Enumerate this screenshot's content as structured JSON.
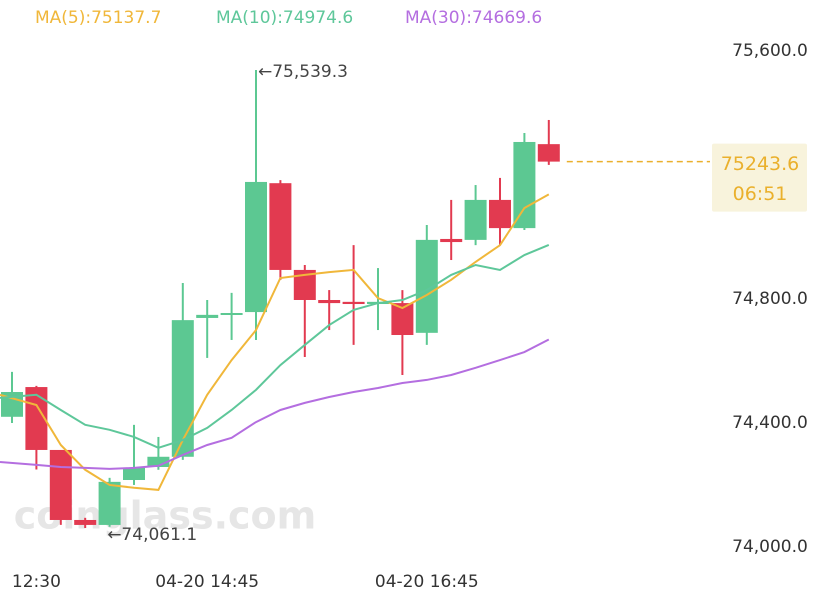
{
  "chart_data": {
    "type": "candlestick",
    "watermark": "coinglass.com",
    "categories": [
      null,
      "12:30",
      null,
      null,
      null,
      null,
      null,
      null,
      "04-20 14:45",
      null,
      null,
      null,
      null,
      null,
      null,
      null,
      null,
      "04-20 16:45",
      null,
      null,
      null,
      null,
      null
    ],
    "candles": [
      {
        "open": 74420,
        "high": 74565,
        "low": 74400,
        "close": 74500
      },
      {
        "open": 74516,
        "high": 74520,
        "low": 74250,
        "close": 74313
      },
      {
        "open": 74313,
        "high": 74313,
        "low": 74071,
        "close": 74087
      },
      {
        "open": 74087,
        "high": 74094,
        "low": 74061.1,
        "close": 74071
      },
      {
        "open": 74071,
        "high": 74223,
        "low": 74065,
        "close": 74210
      },
      {
        "open": 74216,
        "high": 74394,
        "low": 74200,
        "close": 74255
      },
      {
        "open": 74258,
        "high": 74355,
        "low": 74249,
        "close": 74291
      },
      {
        "open": 74291,
        "high": 74852,
        "low": 74281,
        "close": 74732
      },
      {
        "open": 74739,
        "high": 74797,
        "low": 74610,
        "close": 74749
      },
      {
        "open": 74749,
        "high": 74820,
        "low": 74668,
        "close": 74755
      },
      {
        "open": 74758,
        "high": 75539.3,
        "low": 74668,
        "close": 75178
      },
      {
        "open": 75174,
        "high": 75184,
        "low": 74862,
        "close": 74894
      },
      {
        "open": 74894,
        "high": 74910,
        "low": 74613,
        "close": 74797
      },
      {
        "open": 74797,
        "high": 74829,
        "low": 74700,
        "close": 74787
      },
      {
        "open": 74791,
        "high": 74974,
        "low": 74652,
        "close": 74784
      },
      {
        "open": 74784,
        "high": 74900,
        "low": 74700,
        "close": 74791
      },
      {
        "open": 74787,
        "high": 74829,
        "low": 74555,
        "close": 74684
      },
      {
        "open": 74691,
        "high": 75039,
        "low": 74652,
        "close": 74991
      },
      {
        "open": 74994,
        "high": 75120,
        "low": 74926,
        "close": 74984
      },
      {
        "open": 74991,
        "high": 75168,
        "low": 74974,
        "close": 75120
      },
      {
        "open": 75120,
        "high": 75191,
        "low": 74974,
        "close": 75029
      },
      {
        "open": 75029,
        "high": 75336,
        "low": 75023,
        "close": 75307
      },
      {
        "open": 75300,
        "high": 75378,
        "low": 75233,
        "close": 75243.6
      }
    ],
    "up_color": "#5cc892",
    "down_color": "#e23a50",
    "series": [
      {
        "name": "MA(5):75137.7",
        "color": "#f0b73a",
        "values": [
          74491,
          74458,
          74329,
          74249,
          74200,
          74191,
          74184,
          74345,
          74491,
          74603,
          74700,
          74868,
          74878,
          74887,
          74894,
          74803,
          74771,
          74813,
          74862,
          74920,
          74974,
          75094,
          75137.7
        ]
      },
      {
        "name": "MA(10):74974.6",
        "color": "#5ec79a",
        "values": [
          74481,
          74491,
          74442,
          74394,
          74378,
          74355,
          74320,
          74345,
          74384,
          74442,
          74507,
          74587,
          74652,
          74716,
          74765,
          74787,
          74797,
          74829,
          74878,
          74910,
          74894,
          74942,
          74974.6
        ]
      },
      {
        "name": "MA(30):74669.6",
        "color": "#b46ee0",
        "values": [
          74274,
          74265,
          74258,
          74255,
          74252,
          74255,
          74262,
          74297,
          74329,
          74352,
          74403,
          74442,
          74465,
          74484,
          74500,
          74513,
          74529,
          74539,
          74555,
          74578,
          74603,
          74629,
          74669.6
        ]
      }
    ],
    "annotations": [
      {
        "text": "←75,539.3"
      },
      {
        "text": "←74,061.1"
      }
    ],
    "last_price": {
      "label": "75243.6",
      "countdown": "06:51",
      "color": "#eab02c"
    },
    "ylim": [
      73950,
      75650
    ],
    "yticks": [
      {
        "value": 75600,
        "label": "75,600.0"
      },
      {
        "value": 74800,
        "label": "74,800.0"
      },
      {
        "value": 74400,
        "label": "74,400.0"
      },
      {
        "value": 74000,
        "label": "74,000.0"
      }
    ]
  }
}
